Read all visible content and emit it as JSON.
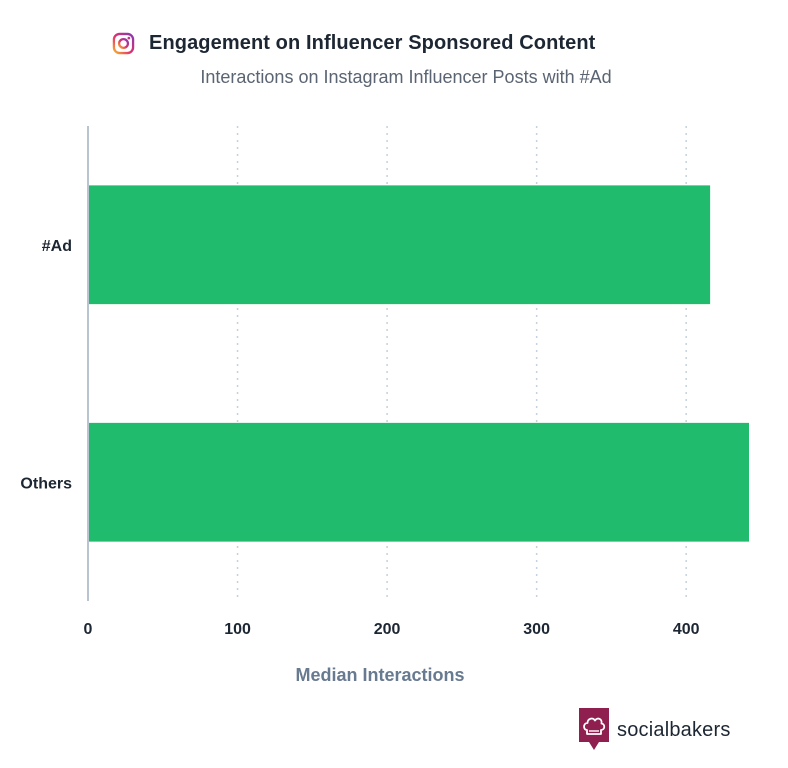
{
  "header": {
    "title": "Engagement on Influencer Sponsored Content",
    "subtitle": "Interactions on Instagram Influencer Posts with #Ad",
    "icon": "instagram-icon"
  },
  "brand": {
    "name": "socialbakers",
    "icon": "socialbakers-chef-hat-icon",
    "color": "#8e1f4f"
  },
  "chart_data": {
    "type": "bar",
    "orientation": "horizontal",
    "title": "Engagement on Influencer Sponsored Content",
    "subtitle": "Interactions on Instagram Influencer Posts with #Ad",
    "categories": [
      "#Ad",
      "Others"
    ],
    "values": [
      416,
      442
    ],
    "xlabel": "Median Interactions",
    "ylabel": "",
    "xlim": [
      0,
      442
    ],
    "xticks": [
      0,
      100,
      200,
      300,
      400
    ],
    "xtick_labels": [
      "0",
      "100",
      "200",
      "300",
      "400"
    ],
    "grid": true,
    "bar_color": "#20bb6d",
    "grid_color": "#c5d1dc",
    "axis_color": "#b8c4d0"
  }
}
